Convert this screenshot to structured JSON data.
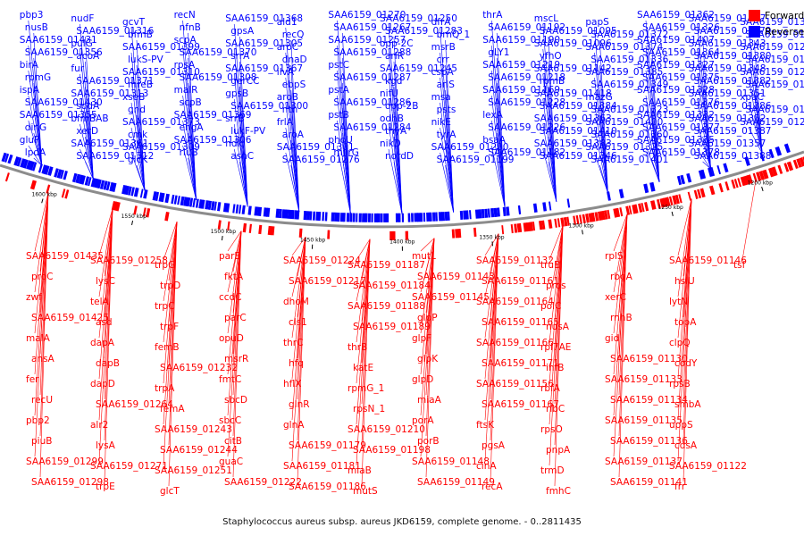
{
  "legend": {
    "forward_label": "Forward",
    "reverse_label": "Reverse",
    "forward_color": "#ff0000",
    "reverse_color": "#0000ff"
  },
  "caption": "Staphylococcus aureus subsp. aureus JKD6159, complete genome. - 0..2811435",
  "scale_labels": [
    "1600 kbp",
    "1550 kbp",
    "1500 kbp",
    "1450 kbp",
    "1400 kbp",
    "1350 kbp",
    "1300 kbp",
    "1250 kbp",
    "1200 kbp"
  ],
  "reverse_genes": [
    "pbp3",
    "nusB",
    "SAA6159_01431",
    "SAA6159_01356",
    "birA",
    "rpmG",
    "ispA",
    "SAA6159_01430",
    "SAA6159_01355",
    "dinG",
    "gluP",
    "lpdA",
    "nudF",
    "SAA6159_01316",
    "pulG",
    "acoA",
    "fur",
    "SAA6159_01371",
    "SAA6159_01313",
    "sodA",
    "bfmBAB",
    "xerD",
    "SAA6159_01361",
    "SAA6159_01312",
    "gcvT",
    "bfmB",
    "SAA6159_01399",
    "lukS-PV",
    "SAA6159_01310",
    "mreB",
    "xseB",
    "gnd",
    "SAA6159_01373",
    "cmk",
    "SAA6159_01309",
    "glcK",
    "recN",
    "nfnB",
    "scpA",
    "SAA6159_01370",
    "rpsA",
    "SAA6159_01308",
    "malR",
    "scpB",
    "SAA6159_01369",
    "engA",
    "SAA6159_01306",
    "rluB",
    "SAA6159_01368",
    "gpsA",
    "SAA6159_01305",
    "srrA",
    "SAA6159_01367",
    "gerCC",
    "gpsB",
    "SAA6159_01300",
    "srrB",
    "lukF-PV",
    "ndk",
    "asnC",
    "ald1",
    "recQ",
    "aroC",
    "dnaD",
    "ilvA",
    "ebpS",
    "aroB",
    "nth",
    "frlA",
    "aroA",
    "SAA6159_01301",
    "SAA6159_01276",
    "SAA6159_01270",
    "SAA6159_01267",
    "SAA6159_01257",
    "SAA6159_01288",
    "pstC",
    "SAA6159_01287",
    "pstA",
    "SAA6159_01286",
    "pstB",
    "SAA6159_01284",
    "phoU",
    "miirG",
    "SAA6159_01250",
    "SAA6159_01283",
    "opp-2C",
    "arlR",
    "SAA6159_01245",
    "kgd",
    "nifU",
    "opp-2B",
    "odhB",
    "thyA",
    "nikD",
    "nordD",
    "dfrA",
    "brnQ_1",
    "msrB",
    "crr",
    "cspA",
    "arlS",
    "msa",
    "psts",
    "nikE",
    "tyrA",
    "SAA6159_01200",
    "SAA6159_01199",
    "thrA",
    "SAA6159_01192",
    "SAA6159_01190",
    "gLY1",
    "SAA6159_01219",
    "SAA6159_01218",
    "SAA6159_01169",
    "SAA6159_01228",
    "lexA",
    "SAA6159_01226",
    "bsaA",
    "SAA6159_01182",
    "mscL",
    "SAA6159_01095",
    "SAA6159_01096",
    "yfhO",
    "SAA6159_01142",
    "rpmB",
    "SAA6159_01418",
    "SAA6159_01384",
    "SAA6159_01363",
    "SAA6159_01410",
    "SAA6159_01383",
    "SAA6159_01346",
    "papS",
    "SAA6159_01372",
    "SAA6159_01374",
    "SAA6159_01336",
    "SAA6159_01385",
    "SAA6159_01349",
    "mazG",
    "SAA6159_01323",
    "SAA6159_01400",
    "SAA6159_01360",
    "SAA6159_01325",
    "SAA6159_01401",
    "SAA6159_01362",
    "SAA6159_01326",
    "SAA6159_01407",
    "SAA6159_01364",
    "SAA6159_01327",
    "SAA6159_01375",
    "SAA6159_01328",
    "SAA6159_01376",
    "SAA6159_01332",
    "SAA6159_01377",
    "SAA6159_01335",
    "SAA6159_01378",
    "SAA6159_01337",
    "SAA6159_01379",
    "SAA6159_01343",
    "SAA6159_01380",
    "SAA6159_01348",
    "SAA6159_01382",
    "SAA6159_01351",
    "SAA6159_01386",
    "SAA6159_01352",
    "SAA6159_01387",
    "SAA6159_01357",
    "SAA6159_01388",
    "SAA6159_01358",
    "SAA6159_01359",
    "SAA6159_01295",
    "SAA6159_01297",
    "SAA6159_01291",
    "SAA6159_01292",
    "xpaC",
    "SAA6159_01277",
    "SAA6159_01278"
  ],
  "forward_genes": [
    "SAA6159_01435",
    "proC",
    "zwf",
    "SAA6159_01425",
    "malA",
    "ansA",
    "fer",
    "recU",
    "pbp2",
    "piuB",
    "SAA6159_01299",
    "SAA6159_01298",
    "SAA6159_01258",
    "lysC",
    "telA",
    "asd",
    "dapA",
    "dapB",
    "dapD",
    "SAA6159_01264",
    "alr2",
    "lysA",
    "SAA6159_01271",
    "trpE",
    "trpG",
    "trpD",
    "trpC",
    "trpF",
    "femB",
    "SAA6159_01232",
    "trpA",
    "femA",
    "SAA6159_01243",
    "SAA6159_01244",
    "SAA6159_01251",
    "glcT",
    "parE",
    "fktA",
    "ccdC",
    "parC",
    "opuD",
    "msrR",
    "fmtC",
    "sbcD",
    "sbcC",
    "citB",
    "guaC",
    "SAA6159_01222",
    "SAA6159_01224",
    "SAA6159_01217",
    "dhoM",
    "cls1",
    "thrC",
    "hfq",
    "hflX",
    "glnR",
    "glnA",
    "SAA6159_01179",
    "SAA6159_01181",
    "SAA6159_01186",
    "SAA6159_01187",
    "SAA6159_01184",
    "SAA6159_01188",
    "SAA6159_01189",
    "thrB",
    "katE",
    "rpmG_1",
    "rpsN_1",
    "SAA6159_01210",
    "SAA6159_01198",
    "miaB",
    "mutS",
    "mutL",
    "SAA6159_01143",
    "SAA6159_01145",
    "glpP",
    "glpF",
    "glpK",
    "glpD",
    "miaA",
    "porA",
    "porB",
    "SAA6159_01148",
    "SAA6159_01149",
    "SAA6159_01132",
    "SAA6159_01161",
    "SAA6159_01164",
    "SAA6159_01165",
    "SAA6159_01166",
    "SAA6159_01171",
    "SAA6159_01156",
    "SAA6159_01167",
    "ftsK",
    "pgsA",
    "cinA",
    "recA",
    "truB",
    "pros",
    "polC",
    "nusA",
    "rpl7AE",
    "infB",
    "rbfA",
    "ribC",
    "rpsO",
    "pnpA",
    "trmD",
    "fmhC",
    "rplS",
    "rbgA",
    "xerC",
    "rnhB",
    "gid",
    "SAA6159_01130",
    "SAA6159_01133",
    "SAA6159_01134",
    "SAA6159_01135",
    "SAA6159_01136",
    "SAA6159_01137",
    "SAA6159_01141",
    "SAA6159_01146",
    "hslU",
    "lytN",
    "topA",
    "clpQ",
    "codY",
    "rpsB",
    "smbA",
    "uppS",
    "cdsA",
    "SAA6159_01122",
    "frr",
    "tsf"
  ]
}
